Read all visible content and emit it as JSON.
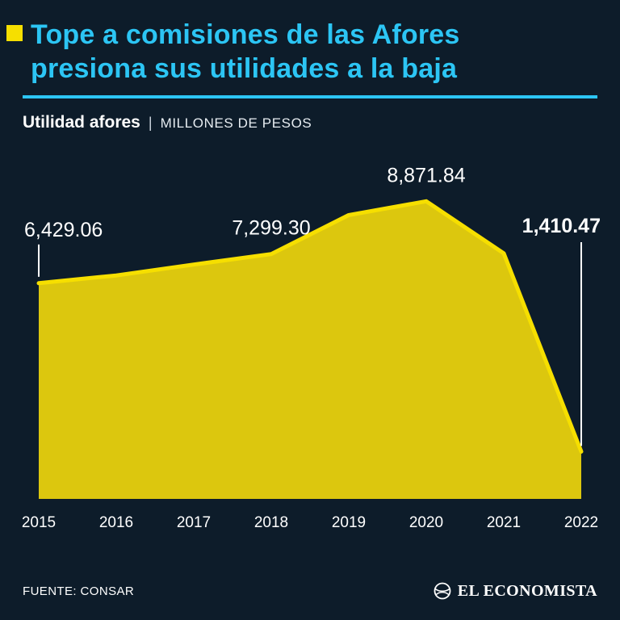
{
  "header": {
    "title": "Tope a comisiones de las Afores\npresiona sus utilidades a la baja"
  },
  "subtitle": {
    "series_name": "Utilidad afores",
    "separator": "|",
    "units": "MILLONES DE PESOS"
  },
  "chart_data": {
    "type": "area",
    "title": "Utilidad afores",
    "ylabel": "millones de pesos",
    "xlabel": "",
    "categories": [
      "2015",
      "2016",
      "2017",
      "2018",
      "2019",
      "2020",
      "2021",
      "2022"
    ],
    "values": [
      6429.06,
      6660,
      6985,
      7299.3,
      8460,
      8871.84,
      7320,
      1410.47
    ],
    "labeled_points": [
      {
        "category": "2015",
        "value": 6429.06,
        "label": "6,429.06",
        "bold": false,
        "style": "tick-short"
      },
      {
        "category": "2018",
        "value": 7299.3,
        "label": "7,299.30",
        "bold": false,
        "style": "above"
      },
      {
        "category": "2020",
        "value": 8871.84,
        "label": "8,871.84",
        "bold": false,
        "style": "above"
      },
      {
        "category": "2022",
        "value": 1410.47,
        "label": "1,410.47",
        "bold": true,
        "style": "tick-long"
      }
    ],
    "ylim": [
      0,
      9000
    ],
    "grid": false,
    "legend": false,
    "colors": {
      "area_fill": "#dcc70e",
      "area_stroke": "#f6df00",
      "label_text": "#ffffff",
      "axis_text": "#ffffff"
    }
  },
  "footer": {
    "source": "FUENTE: CONSAR",
    "brand": "EL ECONOMISTA"
  },
  "theme": {
    "background": "#0d1c2a",
    "accent_cyan": "#2cc5f4",
    "accent_yellow": "#f6df00"
  }
}
